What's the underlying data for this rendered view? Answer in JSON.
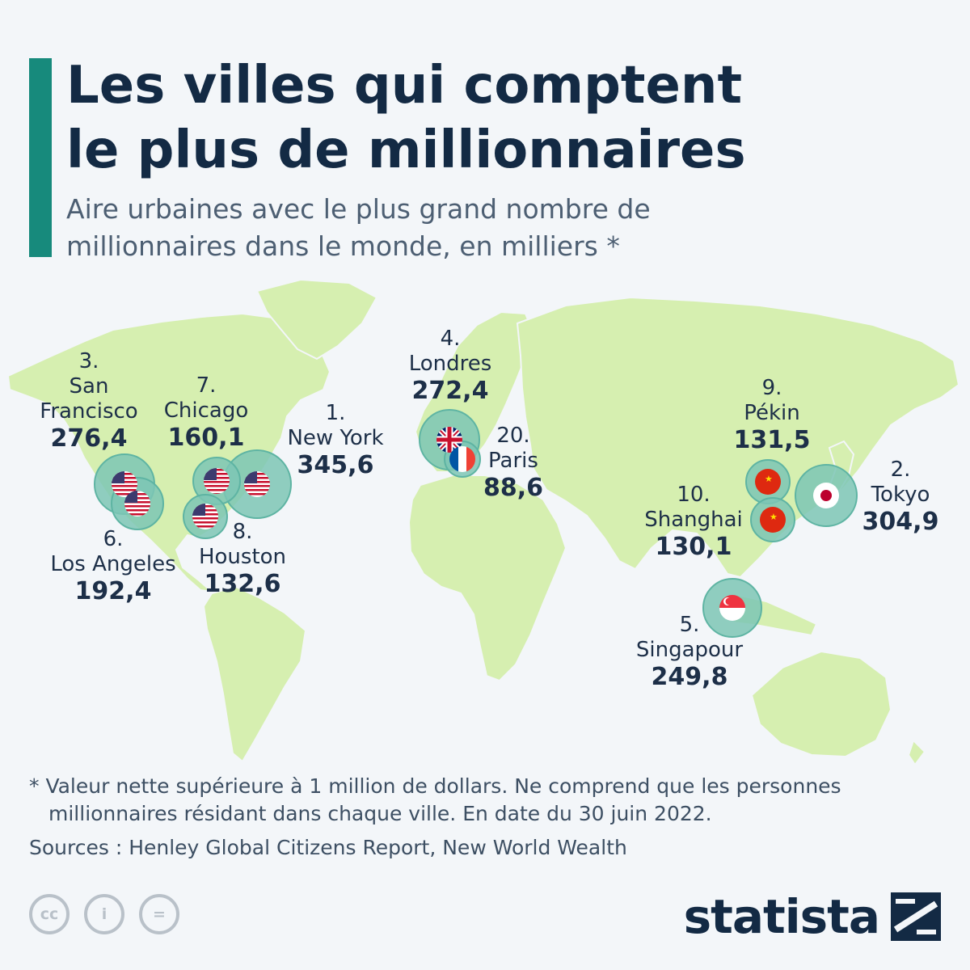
{
  "title_lines": [
    "Les villes qui comptent",
    "le plus de millionnaires"
  ],
  "subtitle_lines": [
    "Aire urbaines avec le plus grand nombre de",
    "millionnaires dans le monde, en milliers *"
  ],
  "colors": {
    "accent": "#178a7c",
    "land": "#d6efb0",
    "ocean": "#f3f6f9",
    "bubble": "#7cc6b5",
    "bubble_stroke": "#5eb4a3",
    "title": "#132a44"
  },
  "cities": [
    {
      "label": "1.",
      "name": "New York",
      "value": "345,6",
      "flag": "us-flag-icon"
    },
    {
      "label": "2.",
      "name": "Tokyo",
      "value": "304,9",
      "flag": "jp-flag-icon"
    },
    {
      "label": "3.",
      "name_lines": [
        "San",
        "Francisco"
      ],
      "value": "276,4",
      "flag": "us-flag-icon"
    },
    {
      "label": "4.",
      "name": "Londres",
      "value": "272,4",
      "flag": "uk-flag-icon"
    },
    {
      "label": "5.",
      "name": "Singapour",
      "value": "249,8",
      "flag": "sg-flag-icon"
    },
    {
      "label": "6.",
      "name": "Los Angeles",
      "value": "192,4",
      "flag": "us-flag-icon"
    },
    {
      "label": "7.",
      "name": "Chicago",
      "value": "160,1",
      "flag": "us-flag-icon"
    },
    {
      "label": "8.",
      "name": "Houston",
      "value": "132,6",
      "flag": "us-flag-icon"
    },
    {
      "label": "9.",
      "name": "Pékin",
      "value": "131,5",
      "flag": "cn-flag-icon"
    },
    {
      "label": "10.",
      "name": "Shanghai",
      "value": "130,1",
      "flag": "cn-flag-icon"
    },
    {
      "label": "20.",
      "name": "Paris",
      "value": "88,6",
      "flag": "fr-flag-icon"
    }
  ],
  "footnote": "* Valeur nette supérieure à 1 million de dollars. Ne comprend que les personnes millionnaires résidant dans chaque ville. En date du 30 juin 2022.",
  "source": "Sources : Henley Global Citizens Report, New World Wealth",
  "license_icons": [
    "cc-icon",
    "attribution-icon",
    "no-derivatives-icon"
  ],
  "license_glyphs": [
    "cc",
    "i",
    "="
  ],
  "logo": "statista"
}
